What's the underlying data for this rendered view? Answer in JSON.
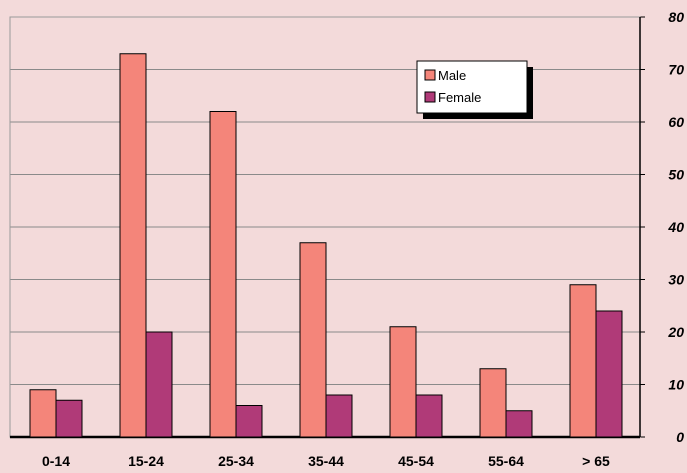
{
  "chart_data": {
    "type": "bar",
    "categories": [
      "0-14",
      "15-24",
      "25-34",
      "35-44",
      "45-54",
      "55-64",
      "> 65"
    ],
    "series": [
      {
        "name": "Male",
        "values": [
          9,
          73,
          62,
          37,
          21,
          13,
          29
        ],
        "color": "#f4857a"
      },
      {
        "name": "Female",
        "values": [
          7,
          20,
          6,
          8,
          8,
          5,
          24
        ],
        "color": "#b03a78"
      }
    ],
    "ylim": [
      0,
      80
    ],
    "yticks": [
      0,
      10,
      20,
      30,
      40,
      50,
      60,
      70,
      80
    ],
    "grid": true,
    "legend_position": "top-right",
    "background_color": "#f3dada",
    "title": "",
    "xlabel": "",
    "ylabel": ""
  }
}
